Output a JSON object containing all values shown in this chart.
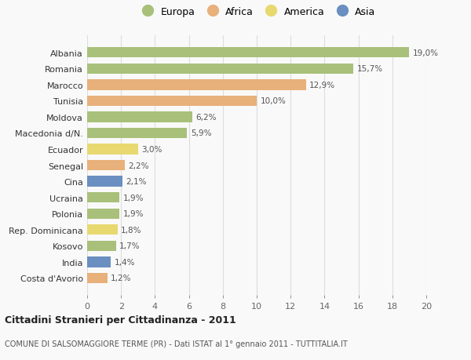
{
  "countries": [
    "Costa d'Avorio",
    "India",
    "Kosovo",
    "Rep. Dominicana",
    "Polonia",
    "Ucraina",
    "Cina",
    "Senegal",
    "Ecuador",
    "Macedonia d/N.",
    "Moldova",
    "Tunisia",
    "Marocco",
    "Romania",
    "Albania"
  ],
  "values": [
    1.2,
    1.4,
    1.7,
    1.8,
    1.9,
    1.9,
    2.1,
    2.2,
    3.0,
    5.9,
    6.2,
    10.0,
    12.9,
    15.7,
    19.0
  ],
  "labels": [
    "1,2%",
    "1,4%",
    "1,7%",
    "1,8%",
    "1,9%",
    "1,9%",
    "2,1%",
    "2,2%",
    "3,0%",
    "5,9%",
    "6,2%",
    "10,0%",
    "12,9%",
    "15,7%",
    "19,0%"
  ],
  "bar_colors": [
    "#e8b07a",
    "#6a8fc0",
    "#a8c07a",
    "#e8d870",
    "#a8c07a",
    "#a8c07a",
    "#6a8fc0",
    "#e8b07a",
    "#e8d870",
    "#a8c07a",
    "#a8c07a",
    "#e8b07a",
    "#e8b07a",
    "#a8c07a",
    "#a8c07a"
  ],
  "legend_labels": [
    "Europa",
    "Africa",
    "America",
    "Asia"
  ],
  "legend_colors": [
    "#a8c07a",
    "#e8b07a",
    "#e8d870",
    "#6a8fc0"
  ],
  "title": "Cittadini Stranieri per Cittadinanza - 2011",
  "subtitle": "COMUNE DI SALSOMAGGIORE TERME (PR) - Dati ISTAT al 1° gennaio 2011 - TUTTITALIA.IT",
  "xlim": [
    0,
    20
  ],
  "xticks": [
    0,
    2,
    4,
    6,
    8,
    10,
    12,
    14,
    16,
    18,
    20
  ],
  "bg_color": "#f9f9f9",
  "grid_color": "#dddddd"
}
